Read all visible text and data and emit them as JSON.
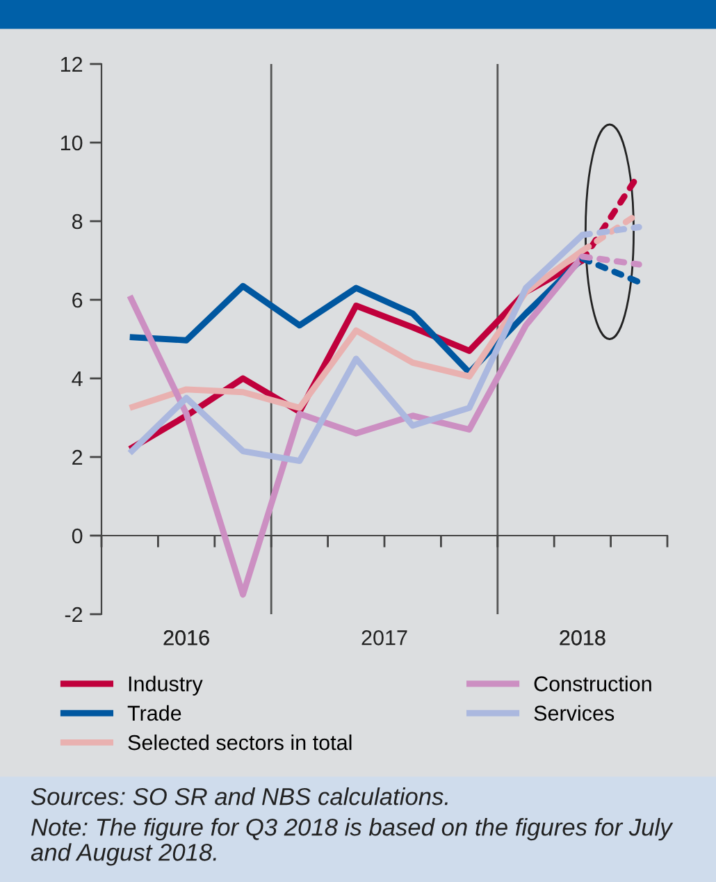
{
  "chart_data": {
    "type": "line",
    "categories": [
      null,
      null,
      null,
      null,
      null,
      null,
      null,
      null,
      null,
      null
    ],
    "ylim": [
      -2,
      12
    ],
    "yticks": [
      {
        "value": -2,
        "label": "-2"
      },
      0,
      2,
      4,
      6,
      8,
      10,
      12
    ],
    "series": [
      {
        "name": "Industry",
        "color": "#c0003c",
        "values": [
          2.2,
          3.05,
          4.0,
          3.15,
          5.85,
          5.3,
          4.7,
          6.2,
          7.0,
          null
        ]
      },
      {
        "name": "Trade",
        "color": "#0057a0",
        "values": [
          5.05,
          4.97,
          6.35,
          5.35,
          6.3,
          5.65,
          4.15,
          5.65,
          7.05,
          null
        ]
      },
      {
        "name": "Selected sectors in total",
        "color": "#e9b1b0",
        "values": [
          3.25,
          3.72,
          3.65,
          3.25,
          5.22,
          4.4,
          4.05,
          6.2,
          7.25,
          null
        ]
      },
      {
        "name": "Construction",
        "color": "#cc8fc2",
        "values": [
          6.1,
          3.1,
          -1.5,
          3.1,
          2.6,
          3.05,
          2.7,
          5.35,
          7.1,
          null
        ]
      },
      {
        "name": "Services",
        "color": "#abb8df",
        "values": [
          2.1,
          3.5,
          2.15,
          1.9,
          4.5,
          2.8,
          3.25,
          6.3,
          7.65,
          null
        ]
      },
      {
        "color": "#c0003c",
        "values": [
          null,
          null,
          null,
          null,
          null,
          null,
          null,
          null,
          7.0,
          9.2
        ],
        "line_style": "dashed"
      },
      {
        "color": "#0057a0",
        "values": [
          null,
          null,
          null,
          null,
          null,
          null,
          null,
          null,
          7.05,
          6.45
        ],
        "line_style": "dashed"
      },
      {
        "color": "#e9b1b0",
        "values": [
          null,
          null,
          null,
          null,
          null,
          null,
          null,
          null,
          7.25,
          8.2
        ],
        "line_style": "dashed"
      },
      {
        "color": "#cc8fc2",
        "values": [
          null,
          null,
          null,
          null,
          null,
          null,
          null,
          null,
          7.1,
          6.9
        ],
        "line_style": "dashed"
      },
      {
        "color": "#abb8df",
        "values": [
          null,
          null,
          null,
          null,
          null,
          null,
          null,
          null,
          7.65,
          7.85
        ],
        "line_style": "dashed"
      }
    ],
    "grid": false,
    "legend": "bottom",
    "annotations": [
      "2016",
      "2017",
      "2018",
      "Sources: SO SR and NBS calculations.",
      "Note: The figure for Q3 2018 is based on the figures for July and August 2018."
    ]
  }
}
